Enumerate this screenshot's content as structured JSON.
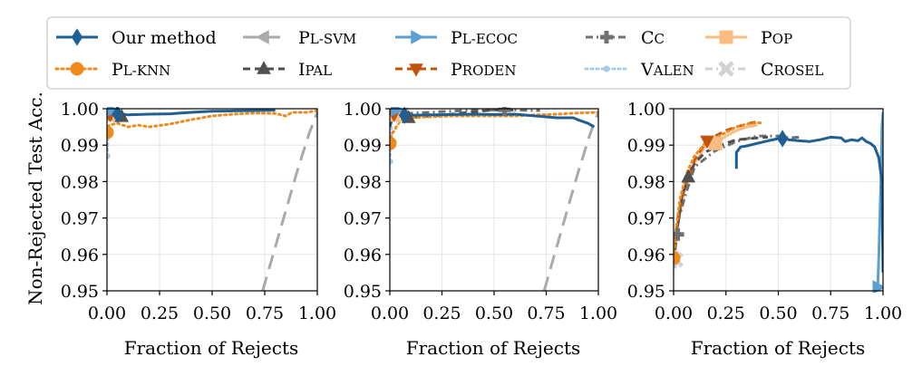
{
  "chart_data": {
    "type": "line",
    "ylabel": "Non-Rejected Test Acc.",
    "xlabel": "Fraction of Rejects",
    "xlim": [
      0,
      1
    ],
    "ylim": [
      0.95,
      1.0
    ],
    "xticks": [
      "0.00",
      "0.25",
      "0.50",
      "0.75",
      "1.00"
    ],
    "yticks": [
      "0.95",
      "0.96",
      "0.97",
      "0.98",
      "0.99",
      "1.00"
    ],
    "grid": true,
    "legend": {
      "placement": "top",
      "entries": [
        {
          "key": "ours",
          "name": "Our method",
          "cap": "",
          "small": "",
          "color": "#1f5f93",
          "dash": "solid",
          "marker": "diamond"
        },
        {
          "key": "plknn",
          "name": "",
          "cap": "P",
          "small": "L-KNN",
          "color": "#ef8a1c",
          "dash": "dot",
          "marker": "circle"
        },
        {
          "key": "plsvm",
          "name": "",
          "cap": "P",
          "small": "L-SVM",
          "color": "#aaaaaa",
          "dash": "longdash",
          "marker": "triangle-left"
        },
        {
          "key": "ipal",
          "name": "",
          "cap": "I",
          "small": "PAL",
          "color": "#505050",
          "dash": "dash",
          "marker": "triangle-up"
        },
        {
          "key": "plecoc",
          "name": "",
          "cap": "P",
          "small": "L-ECOC",
          "color": "#5b9fd4",
          "dash": "solid",
          "marker": "triangle-right"
        },
        {
          "key": "proden",
          "name": "",
          "cap": "P",
          "small": "RODEN",
          "color": "#c3520f",
          "dash": "dash",
          "marker": "triangle-down"
        },
        {
          "key": "cc",
          "name": "",
          "cap": "C",
          "small": "C",
          "color": "#707070",
          "dash": "dashdot",
          "marker": "plus"
        },
        {
          "key": "valen",
          "name": "",
          "cap": "V",
          "small": "ALEN",
          "color": "#a9cbe9",
          "dash": "dot",
          "marker": "small-dot"
        },
        {
          "key": "pop",
          "name": "",
          "cap": "P",
          "small": "OP",
          "color": "#f9bd83",
          "dash": "solid",
          "marker": "square"
        },
        {
          "key": "crosel",
          "name": "",
          "cap": "C",
          "small": "ROSEL",
          "color": "#d2d2d2",
          "dash": "dashdot",
          "marker": "x"
        }
      ]
    },
    "panels": [
      {
        "series": {
          "ours": [
            [
              0.0,
              0.9985
            ],
            [
              0.02,
              0.9984
            ],
            [
              0.05,
              0.9987
            ],
            [
              0.1,
              0.9983
            ],
            [
              0.2,
              0.9985
            ],
            [
              0.3,
              0.9986
            ],
            [
              0.4,
              0.999
            ],
            [
              0.5,
              0.9993
            ],
            [
              0.6,
              0.9994
            ],
            [
              0.7,
              0.9995
            ],
            [
              0.8,
              0.9996
            ]
          ],
          "plknn": [
            [
              0.0,
              0.9935
            ],
            [
              0.01,
              0.9955
            ],
            [
              0.05,
              0.996
            ],
            [
              0.1,
              0.995
            ],
            [
              0.15,
              0.9955
            ],
            [
              0.2,
              0.995
            ],
            [
              0.3,
              0.9958
            ],
            [
              0.4,
              0.997
            ],
            [
              0.5,
              0.998
            ],
            [
              0.6,
              0.9985
            ],
            [
              0.7,
              0.9988
            ],
            [
              0.8,
              0.9987
            ],
            [
              0.85,
              0.998
            ],
            [
              0.88,
              0.999
            ],
            [
              0.95,
              0.999
            ],
            [
              1.0,
              0.9995
            ]
          ],
          "plsvm": [
            [
              0.0,
              0.9985
            ],
            [
              0.02,
              0.999
            ],
            [
              0.05,
              0.9988
            ],
            [
              0.1,
              0.9987
            ]
          ],
          "plsvm_b": [
            [
              0.74,
              0.95
            ],
            [
              0.8,
              0.962
            ],
            [
              0.9,
              0.982
            ],
            [
              0.96,
              0.993
            ],
            [
              1.0,
              0.999
            ]
          ],
          "ipal": [
            [
              0.0,
              0.9978
            ],
            [
              0.03,
              0.9982
            ],
            [
              0.07,
              0.9978
            ],
            [
              0.1,
              0.9985
            ]
          ],
          "plecoc": [
            [
              0.0,
              0.9995
            ],
            [
              0.02,
              0.9998
            ],
            [
              0.04,
              0.9997
            ]
          ],
          "proden": [
            [
              0.0,
              0.9985
            ],
            [
              0.02,
              0.9988
            ]
          ],
          "cc": [
            [
              0.0,
              0.9985
            ],
            [
              0.02,
              0.9988
            ]
          ],
          "valen": [
            [
              0.0,
              0.987
            ],
            [
              0.004,
              0.9905
            ],
            [
              0.008,
              0.995
            ]
          ],
          "pop": [
            [
              0.0,
              0.9982
            ],
            [
              0.02,
              0.9985
            ]
          ],
          "crosel": [
            [
              0.0,
              0.998
            ],
            [
              0.02,
              0.9983
            ]
          ]
        },
        "markers": {
          "ours": [
            0.05,
            0.9985
          ],
          "plknn": [
            0.0,
            0.9935
          ],
          "plsvm": [
            0.03,
            0.9988
          ],
          "ipal": [
            0.07,
            0.9978
          ],
          "plecoc": [
            0.02,
            0.9996
          ],
          "proden": [
            0.015,
            0.9985
          ],
          "cc": [
            0.015,
            0.9986
          ],
          "valen": [
            0.0,
            0.987
          ],
          "pop": [
            0.01,
            0.9983
          ],
          "crosel": [
            0.012,
            0.9982
          ]
        }
      },
      {
        "series": {
          "ours": [
            [
              0.0,
              0.995
            ],
            [
              0.01,
              0.997
            ],
            [
              0.05,
              0.9982
            ],
            [
              0.1,
              0.9982
            ],
            [
              0.2,
              0.9983
            ],
            [
              0.3,
              0.9984
            ],
            [
              0.4,
              0.9985
            ],
            [
              0.5,
              0.9984
            ],
            [
              0.6,
              0.9985
            ],
            [
              0.7,
              0.998
            ],
            [
              0.8,
              0.9975
            ],
            [
              0.88,
              0.9975
            ],
            [
              0.9,
              0.997
            ],
            [
              0.95,
              0.996
            ],
            [
              0.98,
              0.995
            ]
          ],
          "plknn": [
            [
              0.0,
              0.9905
            ],
            [
              0.01,
              0.993
            ],
            [
              0.05,
              0.9968
            ],
            [
              0.1,
              0.9975
            ],
            [
              0.2,
              0.9978
            ],
            [
              0.3,
              0.998
            ],
            [
              0.4,
              0.998
            ],
            [
              0.5,
              0.998
            ],
            [
              0.6,
              0.998
            ],
            [
              0.7,
              0.9983
            ],
            [
              0.8,
              0.9985
            ],
            [
              0.9,
              0.9988
            ],
            [
              1.0,
              0.999
            ]
          ],
          "plsvm": [
            [
              0.0,
              0.9985
            ],
            [
              0.05,
              0.9985
            ],
            [
              0.1,
              0.999
            ]
          ],
          "plsvm_b": [
            [
              0.74,
              0.95
            ],
            [
              0.8,
              0.962
            ],
            [
              0.9,
              0.982
            ],
            [
              0.96,
              0.993
            ],
            [
              1.0,
              0.999
            ]
          ],
          "ipal": [
            [
              0.0,
              0.997
            ],
            [
              0.03,
              0.998
            ],
            [
              0.08,
              0.9975
            ],
            [
              0.2,
              0.998
            ],
            [
              0.3,
              0.9985
            ],
            [
              0.5,
              0.9997
            ],
            [
              0.55,
              0.9995
            ],
            [
              0.6,
              0.9997
            ]
          ],
          "plecoc": [
            [
              0.0,
              0.9995
            ],
            [
              0.03,
              0.9998
            ]
          ],
          "proden": [
            [
              0.0,
              0.998
            ],
            [
              0.02,
              0.9985
            ]
          ],
          "cc": [
            [
              0.0,
              0.998
            ],
            [
              0.02,
              0.9985
            ],
            [
              0.35,
              0.9995
            ],
            [
              0.55,
              0.9997
            ],
            [
              0.72,
              0.9995
            ]
          ],
          "valen": [
            [
              0.0,
              0.9855
            ],
            [
              0.004,
              0.99
            ],
            [
              0.008,
              0.995
            ]
          ],
          "pop": [
            [
              0.0,
              0.998
            ],
            [
              0.02,
              0.9985
            ]
          ],
          "crosel": [
            [
              0.0,
              0.9978
            ],
            [
              0.02,
              0.9982
            ]
          ]
        },
        "markers": {
          "ours": [
            0.07,
            0.9982
          ],
          "plknn": [
            0.0,
            0.9905
          ],
          "plsvm": [
            0.06,
            0.9985
          ],
          "ipal": [
            0.09,
            0.9975
          ],
          "plecoc": [
            0.03,
            0.9997
          ],
          "proden": [
            0.02,
            0.9985
          ],
          "cc": [
            0.55,
            0.9997
          ],
          "valen": [
            0.0,
            0.9855
          ],
          "pop": [
            0.015,
            0.9983
          ],
          "crosel": [
            0.015,
            0.998
          ]
        }
      },
      {
        "series": {
          "ours": [
            [
              0.3,
              0.9835
            ],
            [
              0.3,
              0.988
            ],
            [
              0.32,
              0.9895
            ],
            [
              0.35,
              0.9898
            ],
            [
              0.4,
              0.9905
            ],
            [
              0.45,
              0.9912
            ],
            [
              0.5,
              0.9918
            ],
            [
              0.53,
              0.992
            ],
            [
              0.55,
              0.9915
            ],
            [
              0.6,
              0.9912
            ],
            [
              0.65,
              0.991
            ],
            [
              0.7,
              0.9915
            ],
            [
              0.75,
              0.9922
            ],
            [
              0.8,
              0.992
            ],
            [
              0.82,
              0.991
            ],
            [
              0.85,
              0.9915
            ],
            [
              0.88,
              0.9912
            ],
            [
              0.9,
              0.992
            ],
            [
              0.92,
              0.991
            ],
            [
              0.94,
              0.9905
            ],
            [
              0.96,
              0.9895
            ],
            [
              0.98,
              0.9865
            ],
            [
              0.995,
              0.98
            ],
            [
              1.0,
              0.955
            ]
          ],
          "plknn": [
            [
              0.0,
              0.959
            ],
            [
              0.01,
              0.966
            ],
            [
              0.03,
              0.975
            ],
            [
              0.06,
              0.982
            ],
            [
              0.1,
              0.987
            ],
            [
              0.15,
              0.9905
            ],
            [
              0.2,
              0.992
            ],
            [
              0.25,
              0.9935
            ],
            [
              0.3,
              0.995
            ],
            [
              0.35,
              0.9958
            ],
            [
              0.4,
              0.9962
            ],
            [
              0.43,
              0.996
            ]
          ],
          "plsvm": [],
          "plsvm_b": [],
          "ipal": [
            [
              0.0,
              0.958
            ],
            [
              0.02,
              0.968
            ],
            [
              0.04,
              0.976
            ],
            [
              0.07,
              0.9812
            ],
            [
              0.1,
              0.985
            ],
            [
              0.15,
              0.988
            ],
            [
              0.2,
              0.9895
            ],
            [
              0.3,
              0.9915
            ],
            [
              0.4,
              0.992
            ],
            [
              0.45,
              0.9922
            ]
          ],
          "plecoc": [
            [
              0.975,
              0.951
            ],
            [
              0.98,
              0.96
            ],
            [
              0.985,
              0.97
            ],
            [
              0.99,
              0.98
            ],
            [
              0.995,
              0.995
            ],
            [
              1.0,
              0.999
            ]
          ],
          "proden": [
            [
              0.0,
              0.96
            ],
            [
              0.02,
              0.97
            ],
            [
              0.05,
              0.978
            ],
            [
              0.1,
              0.986
            ],
            [
              0.15,
              0.9905
            ],
            [
              0.2,
              0.9925
            ],
            [
              0.25,
              0.994
            ],
            [
              0.3,
              0.995
            ],
            [
              0.35,
              0.9958
            ],
            [
              0.4,
              0.9965
            ]
          ],
          "cc": [
            [
              0.0,
              0.96
            ],
            [
              0.01,
              0.9655
            ],
            [
              0.03,
              0.971
            ],
            [
              0.06,
              0.977
            ],
            [
              0.1,
              0.984
            ],
            [
              0.2,
              0.9885
            ],
            [
              0.3,
              0.991
            ],
            [
              0.4,
              0.9925
            ],
            [
              0.5,
              0.9925
            ],
            [
              0.55,
              0.992
            ],
            [
              0.6,
              0.9922
            ]
          ],
          "valen": [
            [
              0.0,
              0.957
            ],
            [
              0.01,
              0.962
            ],
            [
              0.02,
              0.9675
            ]
          ],
          "pop": [
            [
              0.0,
              0.958
            ],
            [
              0.02,
              0.968
            ],
            [
              0.05,
              0.977
            ],
            [
              0.1,
              0.985
            ],
            [
              0.15,
              0.9895
            ],
            [
              0.2,
              0.9905
            ],
            [
              0.25,
              0.9925
            ],
            [
              0.3,
              0.994
            ],
            [
              0.35,
              0.995
            ],
            [
              0.4,
              0.9955
            ]
          ],
          "crosel": [
            [
              0.0,
              0.956
            ],
            [
              0.01,
              0.9585
            ],
            [
              0.02,
              0.961
            ]
          ]
        },
        "markers": {
          "ours": [
            0.52,
            0.9918
          ],
          "plknn": [
            0.0,
            0.959
          ],
          "plsvm": null,
          "ipal": [
            0.07,
            0.9812
          ],
          "plecoc": [
            0.975,
            0.951
          ],
          "proden": [
            0.16,
            0.9912
          ],
          "cc": [
            0.02,
            0.9655
          ],
          "valen": [
            0.0,
            0.957
          ],
          "pop": [
            0.2,
            0.9905
          ],
          "crosel": [
            0.01,
            0.9585
          ]
        }
      }
    ]
  }
}
